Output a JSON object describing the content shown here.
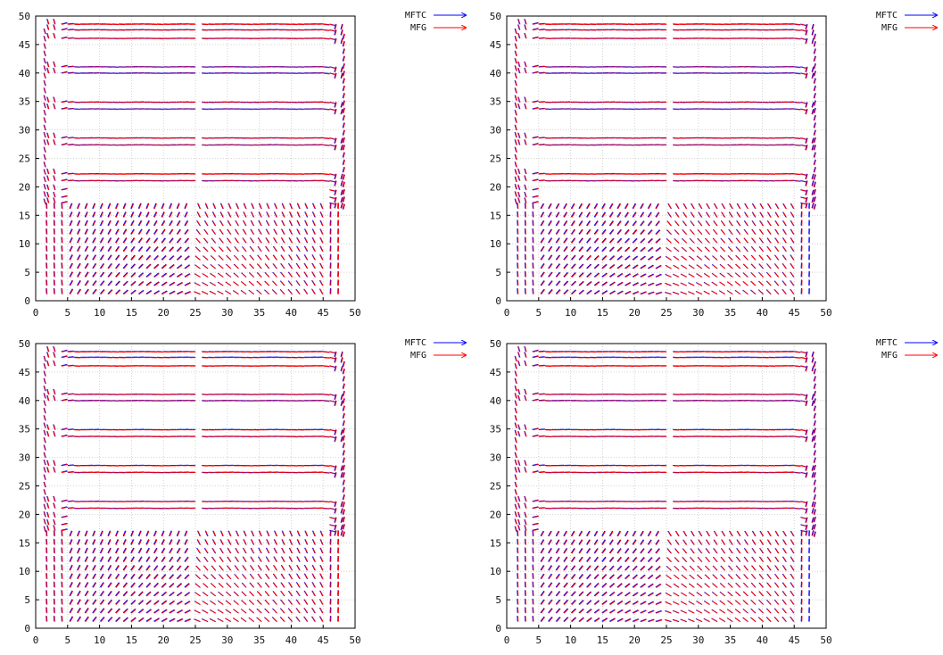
{
  "colors": {
    "mftc": "#0000ff",
    "mfg": "#ff0000",
    "grid": "#c8c8c8",
    "axes": "#000000"
  },
  "chart_data": [
    {
      "type": "quiver",
      "panel": "top-left",
      "xlim": [
        0,
        50
      ],
      "ylim": [
        0,
        50
      ],
      "xticks": [
        "0",
        "5",
        "10",
        "15",
        "20",
        "25",
        "30",
        "35",
        "40",
        "45",
        "50"
      ],
      "yticks": [
        "0",
        "5",
        "10",
        "15",
        "20",
        "25",
        "30",
        "35",
        "40",
        "45",
        "50"
      ],
      "grid": true,
      "legend": "top-right-outside",
      "series": [
        {
          "name": "MFTC",
          "color": "#0000ff"
        },
        {
          "name": "MFG",
          "color": "#ff0000"
        }
      ]
    },
    {
      "type": "quiver",
      "panel": "top-right",
      "xlim": [
        0,
        50
      ],
      "ylim": [
        0,
        50
      ],
      "xticks": [
        "0",
        "5",
        "10",
        "15",
        "20",
        "25",
        "30",
        "35",
        "40",
        "45",
        "50"
      ],
      "yticks": [
        "0",
        "5",
        "10",
        "15",
        "20",
        "25",
        "30",
        "35",
        "40",
        "45",
        "50"
      ],
      "grid": true,
      "legend": "top-right-outside",
      "series": [
        {
          "name": "MFTC",
          "color": "#0000ff"
        },
        {
          "name": "MFG",
          "color": "#ff0000"
        }
      ]
    },
    {
      "type": "quiver",
      "panel": "bottom-left",
      "xlim": [
        0,
        50
      ],
      "ylim": [
        0,
        50
      ],
      "xticks": [
        "0",
        "5",
        "10",
        "15",
        "20",
        "25",
        "30",
        "35",
        "40",
        "45",
        "50"
      ],
      "yticks": [
        "0",
        "5",
        "10",
        "15",
        "20",
        "25",
        "30",
        "35",
        "40",
        "45",
        "50"
      ],
      "grid": true,
      "legend": "top-right-outside",
      "series": [
        {
          "name": "MFTC",
          "color": "#0000ff"
        },
        {
          "name": "MFG",
          "color": "#ff0000"
        }
      ]
    },
    {
      "type": "quiver",
      "panel": "bottom-right",
      "xlim": [
        0,
        50
      ],
      "ylim": [
        0,
        50
      ],
      "xticks": [
        "0",
        "5",
        "10",
        "15",
        "20",
        "25",
        "30",
        "35",
        "40",
        "45",
        "50"
      ],
      "yticks": [
        "0",
        "5",
        "10",
        "15",
        "20",
        "25",
        "30",
        "35",
        "40",
        "45",
        "50"
      ],
      "grid": true,
      "legend": "top-right-outside",
      "series": [
        {
          "name": "MFTC",
          "color": "#0000ff"
        },
        {
          "name": "MFG",
          "color": "#ff0000"
        }
      ]
    }
  ]
}
